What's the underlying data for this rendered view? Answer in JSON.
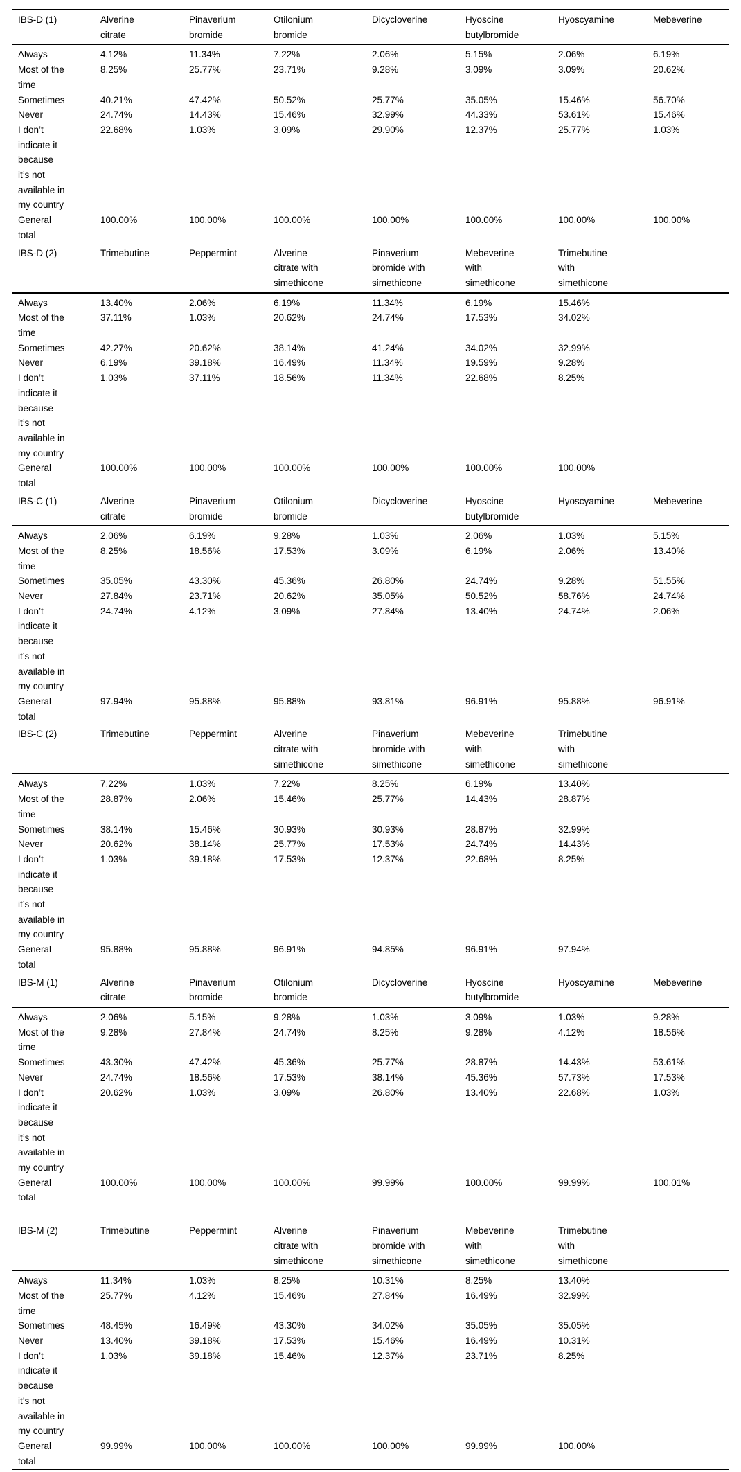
{
  "page": {
    "background_color": "#ffffff",
    "text_color": "#000000",
    "rule_color": "#000000"
  },
  "sections": [
    {
      "id": "ibs-d-1",
      "label": "IBS-D (1)",
      "gap_before": false,
      "columns": [
        "Alverine\ncitrate",
        "Pinaverium\nbromide",
        "Otilonium\nbromide",
        "Dicycloverine",
        "Hyoscine\nbutylbromide",
        "Hyoscyamine",
        "Mebeverine"
      ],
      "rows": [
        {
          "label": "Always",
          "values": [
            "4.12%",
            "11.34%",
            "7.22%",
            "2.06%",
            "5.15%",
            "2.06%",
            "6.19%"
          ]
        },
        {
          "label": "Most of the\ntime",
          "values": [
            "8.25%",
            "25.77%",
            "23.71%",
            "9.28%",
            "3.09%",
            "3.09%",
            "20.62%"
          ]
        },
        {
          "label": "Sometimes",
          "values": [
            "40.21%",
            "47.42%",
            "50.52%",
            "25.77%",
            "35.05%",
            "15.46%",
            "56.70%"
          ]
        },
        {
          "label": "Never",
          "values": [
            "24.74%",
            "14.43%",
            "15.46%",
            "32.99%",
            "44.33%",
            "53.61%",
            "15.46%"
          ]
        },
        {
          "label": "I don’t\nindicate it\nbecause\nit’s not\navailable in\nmy country",
          "values": [
            "22.68%",
            "1.03%",
            "3.09%",
            "29.90%",
            "12.37%",
            "25.77%",
            "1.03%"
          ]
        },
        {
          "label": "General\ntotal",
          "values": [
            "100.00%",
            "100.00%",
            "100.00%",
            "100.00%",
            "100.00%",
            "100.00%",
            "100.00%"
          ]
        }
      ]
    },
    {
      "id": "ibs-d-2",
      "label": "IBS-D (2)",
      "gap_before": false,
      "columns": [
        "Trimebutine",
        "Peppermint",
        "Alverine\ncitrate with\nsimethicone",
        "Pinaverium\nbromide with\nsimethicone",
        "Mebeverine\nwith\nsimethicone",
        "Trimebutine\nwith\nsimethicone",
        ""
      ],
      "rows": [
        {
          "label": "Always",
          "values": [
            "13.40%",
            "2.06%",
            "6.19%",
            "11.34%",
            "6.19%",
            "15.46%",
            ""
          ]
        },
        {
          "label": "Most of the\ntime",
          "values": [
            "37.11%",
            "1.03%",
            "20.62%",
            "24.74%",
            "17.53%",
            "34.02%",
            ""
          ]
        },
        {
          "label": "Sometimes",
          "values": [
            "42.27%",
            "20.62%",
            "38.14%",
            "41.24%",
            "34.02%",
            "32.99%",
            ""
          ]
        },
        {
          "label": "Never",
          "values": [
            "6.19%",
            "39.18%",
            "16.49%",
            "11.34%",
            "19.59%",
            "9.28%",
            ""
          ]
        },
        {
          "label": "I don’t\nindicate it\nbecause\nit’s not\navailable in\nmy country",
          "values": [
            "1.03%",
            "37.11%",
            "18.56%",
            "11.34%",
            "22.68%",
            "8.25%",
            ""
          ]
        },
        {
          "label": "General\ntotal",
          "values": [
            "100.00%",
            "100.00%",
            "100.00%",
            "100.00%",
            "100.00%",
            "100.00%",
            ""
          ]
        }
      ]
    },
    {
      "id": "ibs-c-1",
      "label": "IBS-C (1)",
      "gap_before": false,
      "columns": [
        "Alverine\ncitrate",
        "Pinaverium\nbromide",
        "Otilonium\nbromide",
        "Dicycloverine",
        "Hyoscine\nbutylbromide",
        "Hyoscyamine",
        "Mebeverine"
      ],
      "rows": [
        {
          "label": "Always",
          "values": [
            "2.06%",
            "6.19%",
            "9.28%",
            "1.03%",
            "2.06%",
            "1.03%",
            "5.15%"
          ]
        },
        {
          "label": "Most of the\ntime",
          "values": [
            "8.25%",
            "18.56%",
            "17.53%",
            "3.09%",
            "6.19%",
            "2.06%",
            "13.40%"
          ]
        },
        {
          "label": "Sometimes",
          "values": [
            "35.05%",
            "43.30%",
            "45.36%",
            "26.80%",
            "24.74%",
            "9.28%",
            "51.55%"
          ]
        },
        {
          "label": "Never",
          "values": [
            "27.84%",
            "23.71%",
            "20.62%",
            "35.05%",
            "50.52%",
            "58.76%",
            "24.74%"
          ]
        },
        {
          "label": "I don’t\nindicate it\nbecause\nit’s not\navailable in\nmy country",
          "values": [
            "24.74%",
            "4.12%",
            "3.09%",
            "27.84%",
            "13.40%",
            "24.74%",
            "2.06%"
          ]
        },
        {
          "label": "General\ntotal",
          "values": [
            "97.94%",
            "95.88%",
            "95.88%",
            "93.81%",
            "96.91%",
            "95.88%",
            "96.91%"
          ]
        }
      ]
    },
    {
      "id": "ibs-c-2",
      "label": "IBS-C (2)",
      "gap_before": false,
      "columns": [
        "Trimebutine",
        "Peppermint",
        "Alverine\ncitrate with\nsimethicone",
        "Pinaverium\nbromide with\nsimethicone",
        "Mebeverine\nwith\nsimethicone",
        "Trimebutine\nwith\nsimethicone",
        ""
      ],
      "rows": [
        {
          "label": "Always",
          "values": [
            "7.22%",
            "1.03%",
            "7.22%",
            "8.25%",
            "6.19%",
            "13.40%",
            ""
          ]
        },
        {
          "label": "Most of the\ntime",
          "values": [
            "28.87%",
            "2.06%",
            "15.46%",
            "25.77%",
            "14.43%",
            "28.87%",
            ""
          ]
        },
        {
          "label": "Sometimes",
          "values": [
            "38.14%",
            "15.46%",
            "30.93%",
            "30.93%",
            "28.87%",
            "32.99%",
            ""
          ]
        },
        {
          "label": "Never",
          "values": [
            "20.62%",
            "38.14%",
            "25.77%",
            "17.53%",
            "24.74%",
            "14.43%",
            ""
          ]
        },
        {
          "label": "I don’t\nindicate it\nbecause\nit’s not\navailable in\nmy country",
          "values": [
            "1.03%",
            "39.18%",
            "17.53%",
            "12.37%",
            "22.68%",
            "8.25%",
            ""
          ]
        },
        {
          "label": "General\ntotal",
          "values": [
            "95.88%",
            "95.88%",
            "96.91%",
            "94.85%",
            "96.91%",
            "97.94%",
            ""
          ]
        }
      ]
    },
    {
      "id": "ibs-m-1",
      "label": "IBS-M (1)",
      "gap_before": false,
      "columns": [
        "Alverine\ncitrate",
        "Pinaverium\nbromide",
        "Otilonium\nbromide",
        "Dicycloverine",
        "Hyoscine\nbutylbromide",
        "Hyoscyamine",
        "Mebeverine"
      ],
      "rows": [
        {
          "label": "Always",
          "values": [
            "2.06%",
            "5.15%",
            "9.28%",
            "1.03%",
            "3.09%",
            "1.03%",
            "9.28%"
          ]
        },
        {
          "label": "Most of the\ntime",
          "values": [
            "9.28%",
            "27.84%",
            "24.74%",
            "8.25%",
            "9.28%",
            "4.12%",
            "18.56%"
          ]
        },
        {
          "label": "Sometimes",
          "values": [
            "43.30%",
            "47.42%",
            "45.36%",
            "25.77%",
            "28.87%",
            "14.43%",
            "53.61%"
          ]
        },
        {
          "label": "Never",
          "values": [
            "24.74%",
            "18.56%",
            "17.53%",
            "38.14%",
            "45.36%",
            "57.73%",
            "17.53%"
          ]
        },
        {
          "label": "I don’t\nindicate it\nbecause\nit’s not\navailable in\nmy country",
          "values": [
            "20.62%",
            "1.03%",
            "3.09%",
            "26.80%",
            "13.40%",
            "22.68%",
            "1.03%"
          ]
        },
        {
          "label": "General\ntotal",
          "values": [
            "100.00%",
            "100.00%",
            "100.00%",
            "99.99%",
            "100.00%",
            "99.99%",
            "100.01%"
          ]
        }
      ]
    },
    {
      "id": "ibs-m-2",
      "label": "IBS-M (2)",
      "gap_before": true,
      "columns": [
        "Trimebutine",
        "Peppermint",
        "Alverine\ncitrate with\nsimethicone",
        "Pinaverium\nbromide with\nsimethicone",
        "Mebeverine\nwith\nsimethicone",
        "Trimebutine\nwith\nsimethicone",
        ""
      ],
      "rows": [
        {
          "label": "Always",
          "values": [
            "11.34%",
            "1.03%",
            "8.25%",
            "10.31%",
            "8.25%",
            "13.40%",
            ""
          ]
        },
        {
          "label": "Most of the\ntime",
          "values": [
            "25.77%",
            "4.12%",
            "15.46%",
            "27.84%",
            "16.49%",
            "32.99%",
            ""
          ]
        },
        {
          "label": "Sometimes",
          "values": [
            "48.45%",
            "16.49%",
            "43.30%",
            "34.02%",
            "35.05%",
            "35.05%",
            ""
          ]
        },
        {
          "label": "Never",
          "values": [
            "13.40%",
            "39.18%",
            "17.53%",
            "15.46%",
            "16.49%",
            "10.31%",
            ""
          ]
        },
        {
          "label": "I don’t\nindicate it\nbecause\nit’s not\navailable in\nmy country",
          "values": [
            "1.03%",
            "39.18%",
            "15.46%",
            "12.37%",
            "23.71%",
            "8.25%",
            ""
          ]
        },
        {
          "label": "General\ntotal",
          "values": [
            "99.99%",
            "100.00%",
            "100.00%",
            "100.00%",
            "99.99%",
            "100.00%",
            ""
          ]
        }
      ]
    }
  ]
}
